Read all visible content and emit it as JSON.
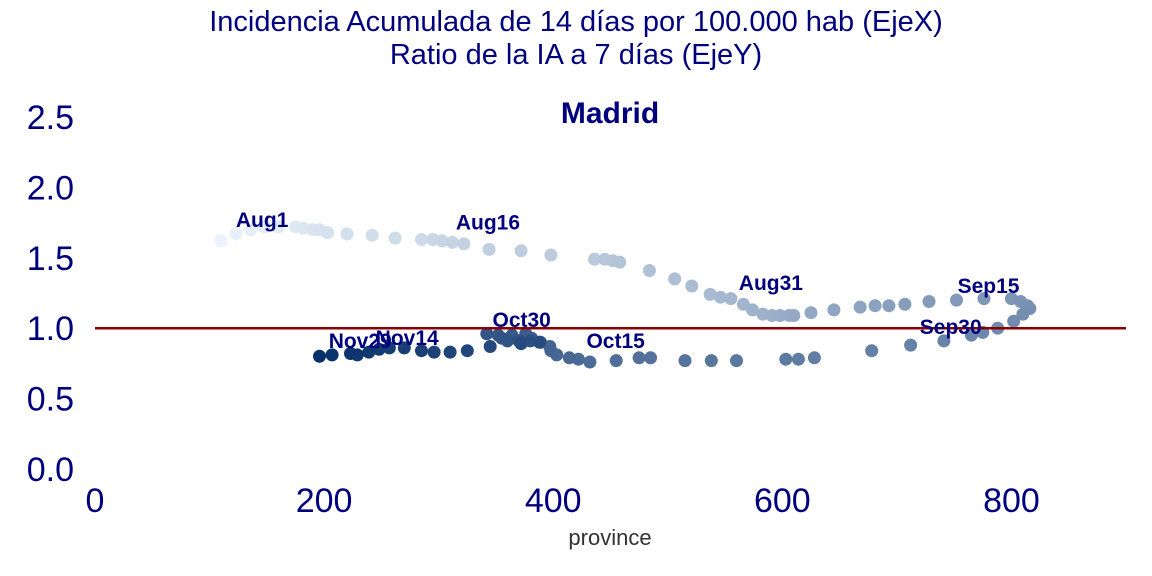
{
  "title_line1": "Incidencia Acumulada de 14 días por 100.000 hab (EjeX)",
  "title_line2": "Ratio de la IA a 7 días (EjeY)",
  "chart_data": {
    "type": "scatter",
    "subtitle": "Madrid",
    "xlabel": "province",
    "ylabel": "",
    "xlim": [
      0,
      900
    ],
    "ylim": [
      -0.1,
      2.65
    ],
    "xticks": [
      0,
      200,
      400,
      600,
      800
    ],
    "xtick_labels": [
      "0",
      "200",
      "400",
      "600",
      "800"
    ],
    "yticks": [
      0.0,
      0.5,
      1.0,
      1.5,
      2.0,
      2.5
    ],
    "ytick_labels": [
      "0.0",
      "0.5",
      "1.0",
      "1.5",
      "2.0",
      "2.5"
    ],
    "grid": false,
    "reference_line": {
      "y": 1.0,
      "color": "#8b0000"
    },
    "colormap": "Blues",
    "color_start": "#eaf3fb",
    "color_end": "#08306b",
    "points": [
      [
        110,
        1.62
      ],
      [
        123,
        1.67
      ],
      [
        136,
        1.7
      ],
      [
        148,
        1.72
      ],
      [
        160,
        1.72
      ],
      [
        175,
        1.72
      ],
      [
        182,
        1.71
      ],
      [
        190,
        1.7
      ],
      [
        196,
        1.7
      ],
      [
        203,
        1.68
      ],
      [
        220,
        1.67
      ],
      [
        242,
        1.66
      ],
      [
        262,
        1.64
      ],
      [
        285,
        1.63
      ],
      [
        295,
        1.63
      ],
      [
        303,
        1.62
      ],
      [
        312,
        1.61
      ],
      [
        322,
        1.6
      ],
      [
        344,
        1.56
      ],
      [
        372,
        1.55
      ],
      [
        398,
        1.52
      ],
      [
        436,
        1.49
      ],
      [
        445,
        1.49
      ],
      [
        452,
        1.48
      ],
      [
        458,
        1.47
      ],
      [
        484,
        1.41
      ],
      [
        506,
        1.35
      ],
      [
        521,
        1.3
      ],
      [
        537,
        1.24
      ],
      [
        546,
        1.22
      ],
      [
        555,
        1.21
      ],
      [
        566,
        1.17
      ],
      [
        574,
        1.13
      ],
      [
        583,
        1.1
      ],
      [
        591,
        1.09
      ],
      [
        598,
        1.09
      ],
      [
        606,
        1.09
      ],
      [
        610,
        1.09
      ],
      [
        625,
        1.11
      ],
      [
        645,
        1.13
      ],
      [
        668,
        1.15
      ],
      [
        681,
        1.16
      ],
      [
        693,
        1.16
      ],
      [
        707,
        1.17
      ],
      [
        728,
        1.19
      ],
      [
        752,
        1.2
      ],
      [
        776,
        1.21
      ],
      [
        800,
        1.21
      ],
      [
        808,
        1.19
      ],
      [
        814,
        1.16
      ],
      [
        816,
        1.14
      ],
      [
        810,
        1.1
      ],
      [
        802,
        1.05
      ],
      [
        788,
        1.0
      ],
      [
        775,
        0.97
      ],
      [
        765,
        0.95
      ],
      [
        741,
        0.91
      ],
      [
        712,
        0.88
      ],
      [
        678,
        0.84
      ],
      [
        628,
        0.79
      ],
      [
        614,
        0.78
      ],
      [
        603,
        0.78
      ],
      [
        560,
        0.77
      ],
      [
        538,
        0.77
      ],
      [
        515,
        0.77
      ],
      [
        485,
        0.79
      ],
      [
        475,
        0.79
      ],
      [
        455,
        0.77
      ],
      [
        432,
        0.76
      ],
      [
        422,
        0.78
      ],
      [
        414,
        0.79
      ],
      [
        403,
        0.81
      ],
      [
        398,
        0.84
      ],
      [
        397,
        0.87
      ],
      [
        389,
        0.9
      ],
      [
        381,
        0.93
      ],
      [
        376,
        0.96
      ],
      [
        364,
        0.95
      ],
      [
        352,
        0.95
      ],
      [
        342,
        0.96
      ],
      [
        355,
        0.93
      ],
      [
        360,
        0.91
      ],
      [
        370,
        0.91
      ],
      [
        380,
        0.91
      ],
      [
        388,
        0.9
      ],
      [
        372,
        0.89
      ],
      [
        345,
        0.87
      ],
      [
        325,
        0.84
      ],
      [
        310,
        0.83
      ],
      [
        296,
        0.83
      ],
      [
        285,
        0.84
      ],
      [
        270,
        0.86
      ],
      [
        257,
        0.86
      ],
      [
        248,
        0.85
      ],
      [
        239,
        0.83
      ],
      [
        229,
        0.81
      ],
      [
        223,
        0.82
      ],
      [
        207,
        0.81
      ],
      [
        196,
        0.8
      ]
    ],
    "annotations": [
      {
        "label": "Aug1",
        "x": 123,
        "y": 1.72
      },
      {
        "label": "Aug16",
        "x": 315,
        "y": 1.7
      },
      {
        "label": "Aug31",
        "x": 562,
        "y": 1.27
      },
      {
        "label": "Sep15",
        "x": 753,
        "y": 1.25
      },
      {
        "label": "Sep30",
        "x": 720,
        "y": 0.96
      },
      {
        "label": "Oct15",
        "x": 429,
        "y": 0.86
      },
      {
        "label": "Oct30",
        "x": 347,
        "y": 1.01
      },
      {
        "label": "Nov14",
        "x": 245,
        "y": 0.88
      },
      {
        "label": "Nov29",
        "x": 204,
        "y": 0.86
      }
    ]
  }
}
